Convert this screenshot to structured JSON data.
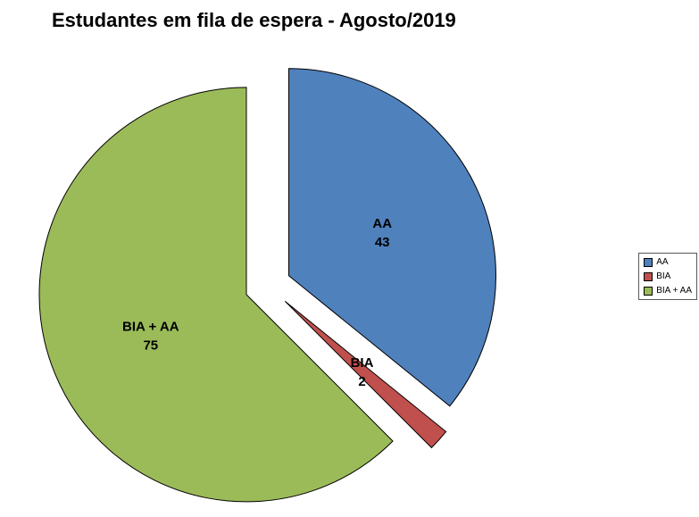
{
  "chart_data": {
    "type": "pie",
    "title": "Estudantes em fila de espera - Agosto/2019",
    "start_angle_deg": 0,
    "direction": "clockwise",
    "exploded": true,
    "total": 120,
    "slices": [
      {
        "label": "AA",
        "value": 43,
        "color": "#4F81BD"
      },
      {
        "label": "BIA",
        "value": 2,
        "color": "#C0504D"
      },
      {
        "label": "BIA + AA",
        "value": 75,
        "color": "#9BBB59"
      }
    ],
    "legend": {
      "position": "right",
      "entries": [
        "AA",
        "BIA",
        "BIA + AA"
      ]
    },
    "data_labels_shown": true
  }
}
